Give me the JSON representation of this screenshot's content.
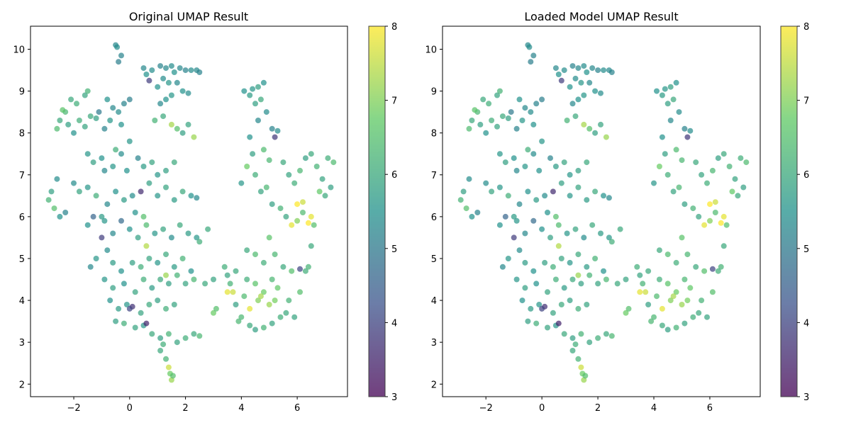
{
  "colormap": {
    "name": "viridis",
    "stops": [
      "#440154",
      "#3b528b",
      "#21918c",
      "#5ec962",
      "#fde725"
    ]
  },
  "chart_data": [
    {
      "type": "scatter",
      "title": "Original UMAP Result",
      "xlabel": "",
      "ylabel": "",
      "xlim": [
        -3.55,
        7.8
      ],
      "ylim": [
        1.7,
        10.55
      ],
      "xticks": [
        -2,
        0,
        2,
        4,
        6
      ],
      "yticks": [
        2,
        3,
        4,
        5,
        6,
        7,
        8,
        9,
        10
      ],
      "colorbar": {
        "min": 3,
        "max": 8,
        "ticks": [
          3,
          4,
          5,
          6,
          7,
          8
        ]
      },
      "marker_alpha": 0.7,
      "grid": false,
      "points": [
        [
          -0.5,
          10.1,
          5.3
        ],
        [
          -0.45,
          10.05,
          5.4
        ],
        [
          -0.3,
          9.85,
          5.2
        ],
        [
          -0.4,
          9.7,
          5.1
        ],
        [
          0.5,
          9.55,
          5.3
        ],
        [
          0.6,
          9.4,
          5.5
        ],
        [
          0.8,
          9.5,
          5.4
        ],
        [
          1.1,
          9.6,
          5.2
        ],
        [
          1.3,
          9.55,
          5.3
        ],
        [
          1.5,
          9.6,
          5.4
        ],
        [
          1.6,
          9.45,
          5.5
        ],
        [
          1.8,
          9.55,
          5.3
        ],
        [
          2.0,
          9.5,
          5.2
        ],
        [
          2.2,
          9.5,
          5.4
        ],
        [
          2.4,
          9.5,
          5.3
        ],
        [
          2.5,
          9.45,
          5.2
        ],
        [
          1.2,
          9.3,
          5.4
        ],
        [
          1.4,
          9.2,
          5.6
        ],
        [
          1.0,
          9.1,
          5.5
        ],
        [
          0.7,
          9.25,
          3.9
        ],
        [
          1.7,
          9.2,
          5.3
        ],
        [
          1.9,
          9.0,
          5.5
        ],
        [
          2.1,
          8.95,
          5.4
        ],
        [
          1.5,
          8.9,
          5.6
        ],
        [
          1.3,
          8.8,
          5.5
        ],
        [
          1.1,
          8.7,
          5.3
        ],
        [
          -2.1,
          8.8,
          6.0
        ],
        [
          -1.9,
          8.7,
          6.1
        ],
        [
          -1.6,
          8.9,
          5.9
        ],
        [
          -1.5,
          9.0,
          6.2
        ],
        [
          -2.3,
          8.5,
          6.3
        ],
        [
          -2.5,
          8.3,
          6.0
        ],
        [
          -2.2,
          8.2,
          5.8
        ],
        [
          -2.0,
          8.0,
          5.5
        ],
        [
          -1.8,
          8.3,
          6.1
        ],
        [
          -1.6,
          8.15,
          5.9
        ],
        [
          -1.4,
          8.4,
          6.0
        ],
        [
          -1.2,
          8.35,
          5.8
        ],
        [
          -2.6,
          8.1,
          6.4
        ],
        [
          -2.4,
          8.55,
          6.6
        ],
        [
          -0.8,
          8.8,
          5.5
        ],
        [
          -0.6,
          8.6,
          5.3
        ],
        [
          -0.4,
          8.5,
          5.4
        ],
        [
          -0.2,
          8.7,
          5.2
        ],
        [
          0.0,
          8.8,
          5.1
        ],
        [
          -0.7,
          8.3,
          5.6
        ],
        [
          -0.3,
          8.2,
          5.5
        ],
        [
          -0.9,
          8.1,
          5.2
        ],
        [
          -1.1,
          8.5,
          5.0
        ],
        [
          -1.5,
          7.5,
          5.6
        ],
        [
          -1.3,
          7.3,
          5.8
        ],
        [
          -1.0,
          7.4,
          5.5
        ],
        [
          -0.9,
          7.1,
          5.3
        ],
        [
          -0.6,
          7.2,
          5.6
        ],
        [
          -0.3,
          7.5,
          5.4
        ],
        [
          -0.1,
          7.1,
          5.5
        ],
        [
          0.3,
          7.4,
          5.2
        ],
        [
          0.5,
          7.2,
          5.7
        ],
        [
          0.8,
          7.3,
          5.9
        ],
        [
          1.0,
          7.0,
          5.6
        ],
        [
          1.3,
          7.1,
          5.8
        ],
        [
          1.6,
          7.3,
          6.0
        ],
        [
          -2.8,
          6.6,
          5.8
        ],
        [
          -2.6,
          6.9,
          5.4
        ],
        [
          -2.9,
          6.4,
          6.2
        ],
        [
          -2.7,
          6.2,
          6.5
        ],
        [
          -2.5,
          6.0,
          5.5
        ],
        [
          -2.3,
          6.1,
          5.2
        ],
        [
          -2.0,
          6.8,
          5.4
        ],
        [
          -1.8,
          6.6,
          5.9
        ],
        [
          -1.5,
          6.7,
          5.6
        ],
        [
          -1.2,
          6.5,
          6.1
        ],
        [
          -0.8,
          6.3,
          5.3
        ],
        [
          -0.5,
          6.6,
          5.5
        ],
        [
          -0.2,
          6.4,
          5.7
        ],
        [
          0.1,
          6.5,
          5.4
        ],
        [
          0.4,
          6.6,
          3.6
        ],
        [
          0.7,
          6.8,
          5.8
        ],
        [
          1.0,
          6.5,
          5.6
        ],
        [
          1.3,
          6.7,
          5.9
        ],
        [
          1.6,
          6.4,
          5.7
        ],
        [
          1.9,
          6.6,
          6.0
        ],
        [
          2.2,
          6.5,
          5.5
        ],
        [
          2.4,
          6.45,
          5.3
        ],
        [
          -1.3,
          6.0,
          4.6
        ],
        [
          -1.5,
          5.8,
          5.5
        ],
        [
          -0.9,
          5.9,
          5.6
        ],
        [
          -0.6,
          5.6,
          5.3
        ],
        [
          -0.3,
          5.9,
          4.7
        ],
        [
          0.0,
          5.7,
          5.5
        ],
        [
          0.3,
          5.5,
          5.8
        ],
        [
          0.6,
          5.8,
          6.4
        ],
        [
          0.9,
          5.6,
          5.6
        ],
        [
          1.2,
          5.7,
          5.9
        ],
        [
          1.5,
          5.5,
          5.4
        ],
        [
          1.8,
          5.8,
          6.0
        ],
        [
          2.1,
          5.6,
          5.7
        ],
        [
          2.4,
          5.5,
          5.6
        ],
        [
          2.8,
          5.7,
          6.0
        ],
        [
          -1.0,
          5.5,
          3.9
        ],
        [
          -0.8,
          5.2,
          5.4
        ],
        [
          -1.2,
          5.0,
          5.6
        ],
        [
          -1.4,
          4.8,
          5.3
        ],
        [
          -0.6,
          4.9,
          5.7
        ],
        [
          -0.3,
          4.7,
          5.5
        ],
        [
          0.1,
          4.9,
          5.8
        ],
        [
          0.4,
          4.8,
          6.1
        ],
        [
          0.7,
          5.0,
          5.9
        ],
        [
          1.0,
          4.9,
          5.6
        ],
        [
          1.3,
          5.1,
          6.0
        ],
        [
          1.6,
          4.8,
          5.7
        ],
        [
          1.9,
          5.0,
          6.2
        ],
        [
          2.2,
          4.7,
          5.5
        ],
        [
          -0.9,
          4.5,
          5.6
        ],
        [
          -0.6,
          4.3,
          5.8
        ],
        [
          -0.2,
          4.4,
          5.5
        ],
        [
          0.2,
          4.2,
          5.9
        ],
        [
          0.5,
          4.5,
          6.1
        ],
        [
          0.8,
          4.3,
          5.7
        ],
        [
          1.1,
          4.5,
          6.0
        ],
        [
          1.4,
          4.4,
          5.8
        ],
        [
          1.7,
          4.6,
          6.2
        ],
        [
          2.0,
          4.4,
          5.9
        ],
        [
          2.3,
          4.5,
          6.3
        ],
        [
          2.7,
          4.4,
          6.0
        ],
        [
          -0.7,
          4.0,
          5.5
        ],
        [
          -0.4,
          3.8,
          5.7
        ],
        [
          -0.1,
          3.9,
          5.6
        ],
        [
          0.1,
          3.85,
          3.7
        ],
        [
          0.4,
          3.7,
          5.9
        ],
        [
          0.7,
          3.9,
          6.0
        ],
        [
          1.0,
          4.0,
          5.8
        ],
        [
          1.3,
          3.8,
          6.1
        ],
        [
          1.6,
          3.9,
          5.9
        ],
        [
          -0.5,
          3.5,
          5.8
        ],
        [
          -0.2,
          3.45,
          6.1
        ],
        [
          0.2,
          3.35,
          5.9
        ],
        [
          0.5,
          3.4,
          5.6
        ],
        [
          0.6,
          3.45,
          3.5
        ],
        [
          0.8,
          3.2,
          6.0
        ],
        [
          1.1,
          3.1,
          5.8
        ],
        [
          1.4,
          3.2,
          6.2
        ],
        [
          1.7,
          3.0,
          5.9
        ],
        [
          2.0,
          3.1,
          6.1
        ],
        [
          2.3,
          3.2,
          6.0
        ],
        [
          2.5,
          3.15,
          6.3
        ],
        [
          1.1,
          2.8,
          6.0
        ],
        [
          1.3,
          2.6,
          6.2
        ],
        [
          1.4,
          2.4,
          7.6
        ],
        [
          1.45,
          2.25,
          6.8
        ],
        [
          1.5,
          2.1,
          7.2
        ],
        [
          1.55,
          2.2,
          6.5
        ],
        [
          1.2,
          2.95,
          6.1
        ],
        [
          3.0,
          3.7,
          6.8
        ],
        [
          3.1,
          3.8,
          6.5
        ],
        [
          3.4,
          4.8,
          6.1
        ],
        [
          3.5,
          4.6,
          5.9
        ],
        [
          3.6,
          4.4,
          6.2
        ],
        [
          3.7,
          4.2,
          7.6
        ],
        [
          3.8,
          3.9,
          5.8
        ],
        [
          3.9,
          3.5,
          6.3
        ],
        [
          3.5,
          4.2,
          7.8
        ],
        [
          3.8,
          4.7,
          6.0
        ],
        [
          4.1,
          4.1,
          6.4
        ],
        [
          4.3,
          3.8,
          7.8
        ],
        [
          4.2,
          4.5,
          6.1
        ],
        [
          4.5,
          4.4,
          6.6
        ],
        [
          4.6,
          4.0,
          7.0
        ],
        [
          4.8,
          4.2,
          6.8
        ],
        [
          5.0,
          3.9,
          7.2
        ],
        [
          5.1,
          4.5,
          6.3
        ],
        [
          5.3,
          4.3,
          6.7
        ],
        [
          5.6,
          3.7,
          6.0
        ],
        [
          5.7,
          4.0,
          6.2
        ],
        [
          5.9,
          3.6,
          5.9
        ],
        [
          6.1,
          4.2,
          6.5
        ],
        [
          6.3,
          4.7,
          6.1
        ],
        [
          4.3,
          3.4,
          6.0
        ],
        [
          4.5,
          3.3,
          5.8
        ],
        [
          4.8,
          3.35,
          6.2
        ],
        [
          5.1,
          3.45,
          5.9
        ],
        [
          5.4,
          3.6,
          6.1
        ],
        [
          4.0,
          3.6,
          6.3
        ],
        [
          4.2,
          5.2,
          6.0
        ],
        [
          4.5,
          5.1,
          6.4
        ],
        [
          4.8,
          4.9,
          6.1
        ],
        [
          5.0,
          5.5,
          6.6
        ],
        [
          5.2,
          5.1,
          6.3
        ],
        [
          5.5,
          4.8,
          6.0
        ],
        [
          5.8,
          4.7,
          6.5
        ],
        [
          6.1,
          4.75,
          4.0
        ],
        [
          6.4,
          4.8,
          6.2
        ],
        [
          6.5,
          5.3,
          6.0
        ],
        [
          4.0,
          6.8,
          5.6
        ],
        [
          4.2,
          7.2,
          6.8
        ],
        [
          4.5,
          7.0,
          6.1
        ],
        [
          4.7,
          6.6,
          5.9
        ],
        [
          4.9,
          6.7,
          6.3
        ],
        [
          5.1,
          6.3,
          5.8
        ],
        [
          5.4,
          6.2,
          6.2
        ],
        [
          5.6,
          6.0,
          5.9
        ],
        [
          5.8,
          5.8,
          7.8
        ],
        [
          6.0,
          6.3,
          8.0
        ],
        [
          6.2,
          6.1,
          6.4
        ],
        [
          6.4,
          5.85,
          8.0
        ],
        [
          6.5,
          6.0,
          7.8
        ],
        [
          6.6,
          5.8,
          6.5
        ],
        [
          5.5,
          7.3,
          6.0
        ],
        [
          5.7,
          7.0,
          5.9
        ],
        [
          5.9,
          6.8,
          6.1
        ],
        [
          6.1,
          7.1,
          6.3
        ],
        [
          6.3,
          7.4,
          5.8
        ],
        [
          6.5,
          7.5,
          6.0
        ],
        [
          6.7,
          7.2,
          6.2
        ],
        [
          6.9,
          6.9,
          5.9
        ],
        [
          7.1,
          7.4,
          6.1
        ],
        [
          7.3,
          7.3,
          6.4
        ],
        [
          7.0,
          6.5,
          6.0
        ],
        [
          7.2,
          6.7,
          5.8
        ],
        [
          6.8,
          6.6,
          6.7
        ],
        [
          4.1,
          9.0,
          5.5
        ],
        [
          4.3,
          8.9,
          5.7
        ],
        [
          4.5,
          8.7,
          5.8
        ],
        [
          4.7,
          8.8,
          6.0
        ],
        [
          4.6,
          9.1,
          5.8
        ],
        [
          4.4,
          9.05,
          5.6
        ],
        [
          4.8,
          9.2,
          5.5
        ],
        [
          4.9,
          8.5,
          5.4
        ],
        [
          4.6,
          8.3,
          5.3
        ],
        [
          5.1,
          8.1,
          5.2
        ],
        [
          5.3,
          8.05,
          5.4
        ],
        [
          5.2,
          7.9,
          3.8
        ],
        [
          4.4,
          7.5,
          5.8
        ],
        [
          4.3,
          7.9,
          5.5
        ],
        [
          4.8,
          7.6,
          6.4
        ],
        [
          5.0,
          7.35,
          6.3
        ],
        [
          -1.0,
          6.0,
          5.7
        ],
        [
          0.2,
          6.1,
          5.5
        ],
        [
          1.7,
          8.1,
          6.5
        ],
        [
          1.5,
          8.2,
          7.3
        ],
        [
          1.9,
          8.0,
          5.8
        ],
        [
          2.3,
          7.9,
          7.2
        ],
        [
          0.9,
          8.3,
          6.2
        ],
        [
          1.2,
          8.4,
          6.0
        ],
        [
          0.0,
          7.8,
          5.6
        ],
        [
          -0.5,
          7.6,
          6.1
        ],
        [
          2.1,
          8.2,
          5.9
        ],
        [
          0.0,
          3.8,
          4.0
        ],
        [
          0.5,
          6.0,
          6.5
        ],
        [
          0.6,
          5.3,
          7.4
        ],
        [
          1.3,
          4.6,
          7.2
        ],
        [
          2.5,
          5.4,
          6.1
        ],
        [
          3.0,
          4.5,
          5.9
        ],
        [
          4.7,
          4.1,
          7.3
        ],
        [
          5.2,
          4.0,
          6.9
        ],
        [
          6.0,
          5.9,
          7.0
        ],
        [
          6.2,
          6.35,
          7.6
        ]
      ]
    },
    {
      "type": "scatter",
      "title": "Loaded Model UMAP Result",
      "xlabel": "",
      "ylabel": "",
      "xlim": [
        -3.55,
        7.8
      ],
      "ylim": [
        1.7,
        10.55
      ],
      "xticks": [
        -2,
        0,
        2,
        4,
        6
      ],
      "yticks": [
        2,
        3,
        4,
        5,
        6,
        7,
        8,
        9,
        10
      ],
      "colorbar": {
        "min": 3,
        "max": 8,
        "ticks": [
          3,
          4,
          5,
          6,
          7,
          8
        ]
      },
      "marker_alpha": 0.7,
      "grid": false,
      "points_same_as_index": 0
    }
  ]
}
